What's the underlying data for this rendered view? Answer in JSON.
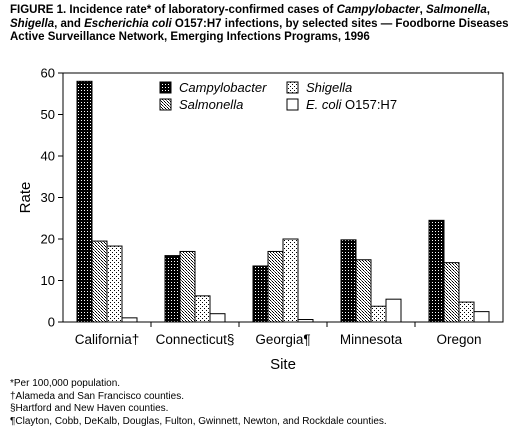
{
  "figure": {
    "title_parts": [
      {
        "text": "FIGURE 1. Incidence rate* of laboratory-confirmed cases of ",
        "italic": false
      },
      {
        "text": "Campylobacter",
        "italic": true
      },
      {
        "text": ", ",
        "italic": false
      },
      {
        "text": "Salmonella",
        "italic": true
      },
      {
        "text": ", ",
        "italic": false
      },
      {
        "text": "Shigella",
        "italic": true
      },
      {
        "text": ", and ",
        "italic": false
      },
      {
        "text": "Escherichia coli",
        "italic": true
      },
      {
        "text": " O157:H7 infections, by selected sites — Foodborne Diseases Active Surveillance Network, Emerging Infections Programs, 1996",
        "italic": false
      }
    ]
  },
  "chart_data": {
    "type": "bar",
    "categories": [
      "California†",
      "Connecticut§",
      "Georgia¶",
      "Minnesota",
      "Oregon"
    ],
    "xlabel": "Site",
    "ylabel": "Rate",
    "ylim": [
      0,
      60
    ],
    "yticks": [
      0,
      10,
      20,
      30,
      40,
      50,
      60
    ],
    "grid": false,
    "legend_position": "top-right",
    "series": [
      {
        "name": "Campylobacter",
        "values": [
          58,
          16,
          13.5,
          19.8,
          24.5
        ],
        "pattern": "dark-dots"
      },
      {
        "name": "Salmonella",
        "values": [
          19.5,
          17,
          17,
          15,
          14.3
        ],
        "pattern": "fine-dots"
      },
      {
        "name": "Shigella",
        "values": [
          18.3,
          6.3,
          20,
          3.8,
          4.8
        ],
        "pattern": "sparse-dots"
      },
      {
        "name": "E. coli O157:H7",
        "values": [
          1,
          2,
          0.6,
          5.5,
          2.5
        ],
        "pattern": "white"
      }
    ]
  },
  "legend_labels": [
    {
      "italic_part": "Campylobacter",
      "plain_part": ""
    },
    {
      "italic_part": "Shigella",
      "plain_part": ""
    },
    {
      "italic_part": "Salmonella",
      "plain_part": ""
    },
    {
      "italic_part": "E. coli",
      "plain_part": " O157:H7"
    }
  ],
  "footnotes": [
    "*Per 100,000 population.",
    "†Alameda and San Francisco counties.",
    "§Hartford and New Haven counties.",
    "¶Clayton, Cobb, DeKalb, Douglas, Fulton, Gwinnett, Newton, and Rockdale counties."
  ]
}
